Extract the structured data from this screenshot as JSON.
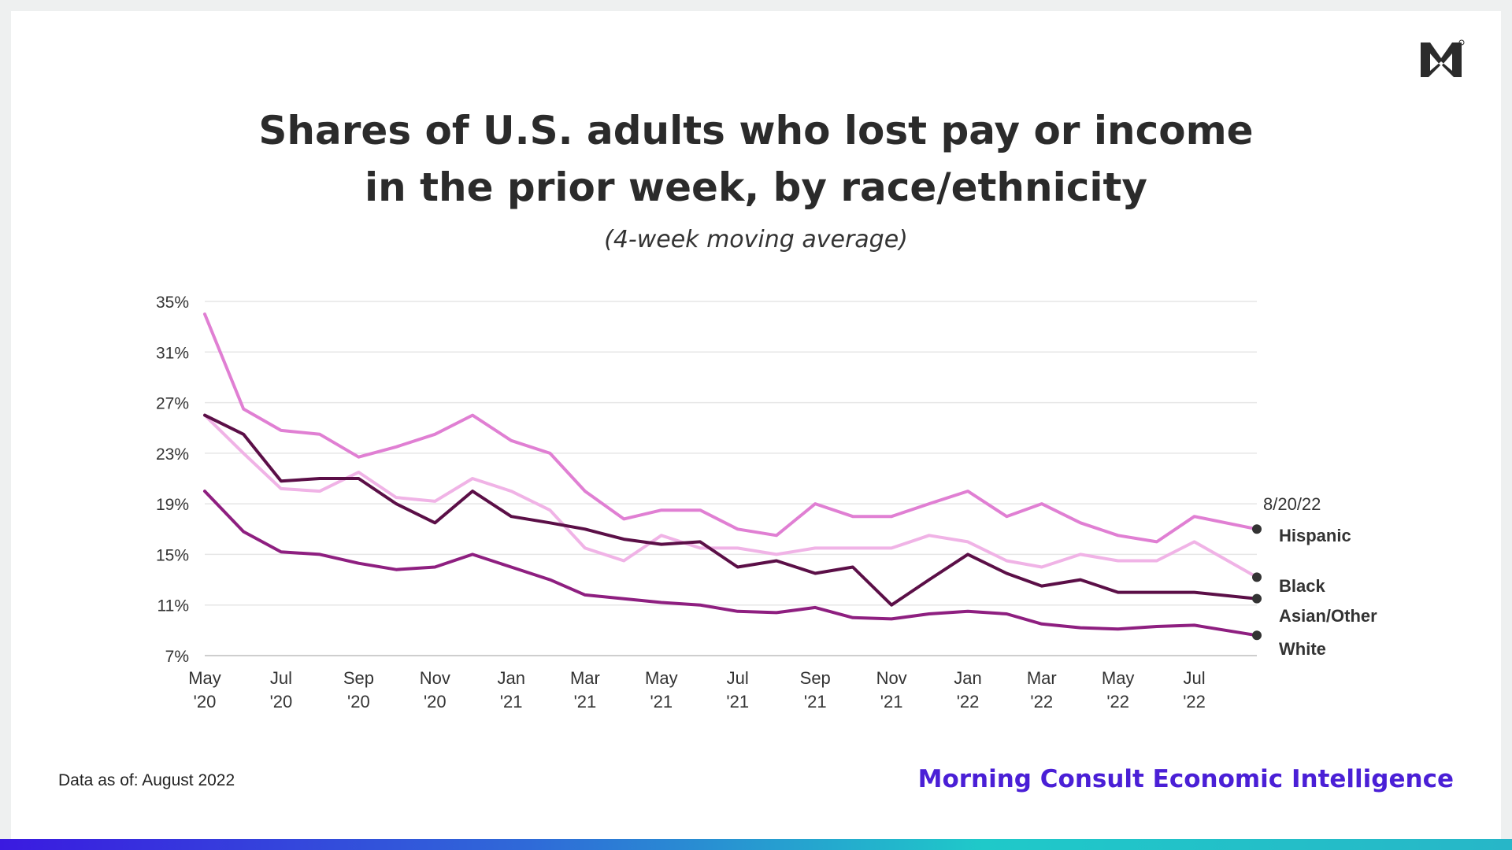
{
  "title_line1": "Shares of U.S. adults who lost pay or income",
  "title_line2": "in the prior week, by race/ethnicity",
  "subtitle": "(4-week moving average)",
  "footnote": "Data as of: August 2022",
  "brand": "Morning Consult Economic Intelligence",
  "logo_icon": "morning-consult-m-logo-icon",
  "colors": {
    "hispanic": "#e07fd3",
    "asian_other": "#f0b3e6",
    "black": "#5b0f47",
    "white": "#8e1f80",
    "brand": "#4a1fd6"
  },
  "chart_data": {
    "type": "line",
    "title": "Shares of U.S. adults who lost pay or income in the prior week, by race/ethnicity",
    "subtitle": "(4-week moving average)",
    "xlabel": "",
    "ylabel": "",
    "ylim": [
      7,
      35
    ],
    "yticks": [
      7,
      11,
      15,
      19,
      23,
      27,
      31,
      35
    ],
    "y_tick_labels": [
      "7%",
      "11%",
      "15%",
      "19%",
      "23%",
      "27%",
      "31%",
      "35%"
    ],
    "grid": "horizontal",
    "x_tick_labels": [
      {
        "month": "May",
        "year": "'20"
      },
      {
        "month": "Jul",
        "year": "'20"
      },
      {
        "month": "Sep",
        "year": "'20"
      },
      {
        "month": "Nov",
        "year": "'20"
      },
      {
        "month": "Jan",
        "year": "'21"
      },
      {
        "month": "Mar",
        "year": "'21"
      },
      {
        "month": "May",
        "year": "'21"
      },
      {
        "month": "Jul",
        "year": "'21"
      },
      {
        "month": "Sep",
        "year": "'21"
      },
      {
        "month": "Nov",
        "year": "'21"
      },
      {
        "month": "Jan",
        "year": "'22"
      },
      {
        "month": "Mar",
        "year": "'22"
      },
      {
        "month": "May",
        "year": "'22"
      },
      {
        "month": "Jul",
        "year": "'22"
      }
    ],
    "x_months": [
      "2020-05",
      "2020-07",
      "2020-09",
      "2020-11",
      "2021-01",
      "2021-03",
      "2021-05",
      "2021-07",
      "2021-09",
      "2021-11",
      "2022-01",
      "2022-03",
      "2022-05",
      "2022-07"
    ],
    "end_date_label": "8/20/22",
    "series": [
      {
        "name": "Hispanic",
        "key": "hispanic",
        "x": [
          "2020-05",
          "2020-06",
          "2020-07",
          "2020-08",
          "2020-09",
          "2020-10",
          "2020-11",
          "2020-12",
          "2021-01",
          "2021-02",
          "2021-03",
          "2021-04",
          "2021-05",
          "2021-06",
          "2021-07",
          "2021-08",
          "2021-09",
          "2021-10",
          "2021-11",
          "2021-12",
          "2022-01",
          "2022-02",
          "2022-03",
          "2022-04",
          "2022-05",
          "2022-06",
          "2022-07",
          "2022-08"
        ],
        "values": [
          34,
          26.5,
          24.8,
          24.5,
          22.7,
          23.5,
          24.5,
          26,
          24,
          23,
          20,
          17.8,
          18.5,
          18.5,
          17,
          16.5,
          19,
          18,
          18,
          19,
          20,
          18,
          19,
          17.5,
          16.5,
          16,
          18,
          17
        ]
      },
      {
        "name": "Black",
        "key": "black",
        "x": [
          "2020-05",
          "2020-06",
          "2020-07",
          "2020-08",
          "2020-09",
          "2020-10",
          "2020-11",
          "2020-12",
          "2021-01",
          "2021-02",
          "2021-03",
          "2021-04",
          "2021-05",
          "2021-06",
          "2021-07",
          "2021-08",
          "2021-09",
          "2021-10",
          "2021-11",
          "2021-12",
          "2022-01",
          "2022-02",
          "2022-03",
          "2022-04",
          "2022-05",
          "2022-06",
          "2022-07",
          "2022-08"
        ],
        "values": [
          26,
          24.5,
          20.8,
          21,
          21,
          19,
          17.5,
          20,
          18,
          17.5,
          17,
          16.2,
          15.8,
          16,
          14,
          14.5,
          13.5,
          14,
          11,
          13,
          15,
          13.5,
          12.5,
          13,
          12,
          12,
          12,
          11.5
        ]
      },
      {
        "name": "Asian/Other",
        "key": "asian_other",
        "x": [
          "2020-05",
          "2020-06",
          "2020-07",
          "2020-08",
          "2020-09",
          "2020-10",
          "2020-11",
          "2020-12",
          "2021-01",
          "2021-02",
          "2021-03",
          "2021-04",
          "2021-05",
          "2021-06",
          "2021-07",
          "2021-08",
          "2021-09",
          "2021-10",
          "2021-11",
          "2021-12",
          "2022-01",
          "2022-02",
          "2022-03",
          "2022-04",
          "2022-05",
          "2022-06",
          "2022-07",
          "2022-08"
        ],
        "values": [
          26,
          23,
          20.2,
          20,
          21.5,
          19.5,
          19.2,
          21,
          20,
          18.5,
          15.5,
          14.5,
          16.5,
          15.5,
          15.5,
          15,
          15.5,
          15.5,
          15.5,
          16.5,
          16,
          14.5,
          14,
          15,
          14.5,
          14.5,
          16,
          13.2
        ]
      },
      {
        "name": "White",
        "key": "white",
        "x": [
          "2020-05",
          "2020-06",
          "2020-07",
          "2020-08",
          "2020-09",
          "2020-10",
          "2020-11",
          "2020-12",
          "2021-01",
          "2021-02",
          "2021-03",
          "2021-04",
          "2021-05",
          "2021-06",
          "2021-07",
          "2021-08",
          "2021-09",
          "2021-10",
          "2021-11",
          "2021-12",
          "2022-01",
          "2022-02",
          "2022-03",
          "2022-04",
          "2022-05",
          "2022-06",
          "2022-07",
          "2022-08"
        ],
        "values": [
          20,
          16.8,
          15.2,
          15,
          14.3,
          13.8,
          14,
          15,
          14,
          13,
          11.8,
          11.5,
          11.2,
          11,
          10.5,
          10.4,
          10.8,
          10,
          9.9,
          10.3,
          10.5,
          10.3,
          9.5,
          9.2,
          9.1,
          9.3,
          9.4,
          8.6
        ]
      }
    ]
  }
}
